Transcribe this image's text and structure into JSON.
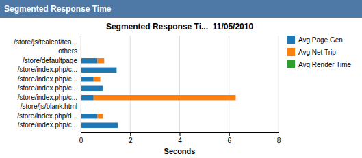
{
  "chart_data": {
    "type": "bar",
    "orientation": "horizontal",
    "stacked": true,
    "title": "Segmented Response Ti...  11/05/2010",
    "subtitle": "Segmented Response Time",
    "x_label": "Seconds",
    "categories": [
      "/store/js/tealeaf/tea...",
      "others",
      "/store/defaultpage",
      "/store/index.php/c...",
      "/store/index.php/c...",
      "/store/index.php/c...",
      "/store/index.php/c...",
      "/store/js/blank.html",
      "/store/index.php/d...",
      "/store/index.php/c..."
    ],
    "series": [
      {
        "name": "Avg Page Gen",
        "values": [
          0.0,
          0.0,
          0.68,
          1.45,
          0.52,
          0.9,
          0.52,
          0.0,
          0.68,
          1.5
        ]
      },
      {
        "name": "Avg Net Trip",
        "values": [
          0.0,
          0.0,
          0.27,
          0.0,
          0.27,
          0.0,
          5.75,
          0.0,
          0.22,
          0.0
        ]
      },
      {
        "name": "Avg Render Time",
        "values": [
          0.0,
          0.0,
          0.0,
          0.0,
          0.0,
          0.0,
          0.0,
          0.0,
          0.0,
          0.0
        ]
      }
    ],
    "xlim": [
      0,
      8
    ],
    "xticks": [
      0,
      2,
      4,
      6,
      8
    ],
    "grid": true,
    "legend": "right"
  }
}
